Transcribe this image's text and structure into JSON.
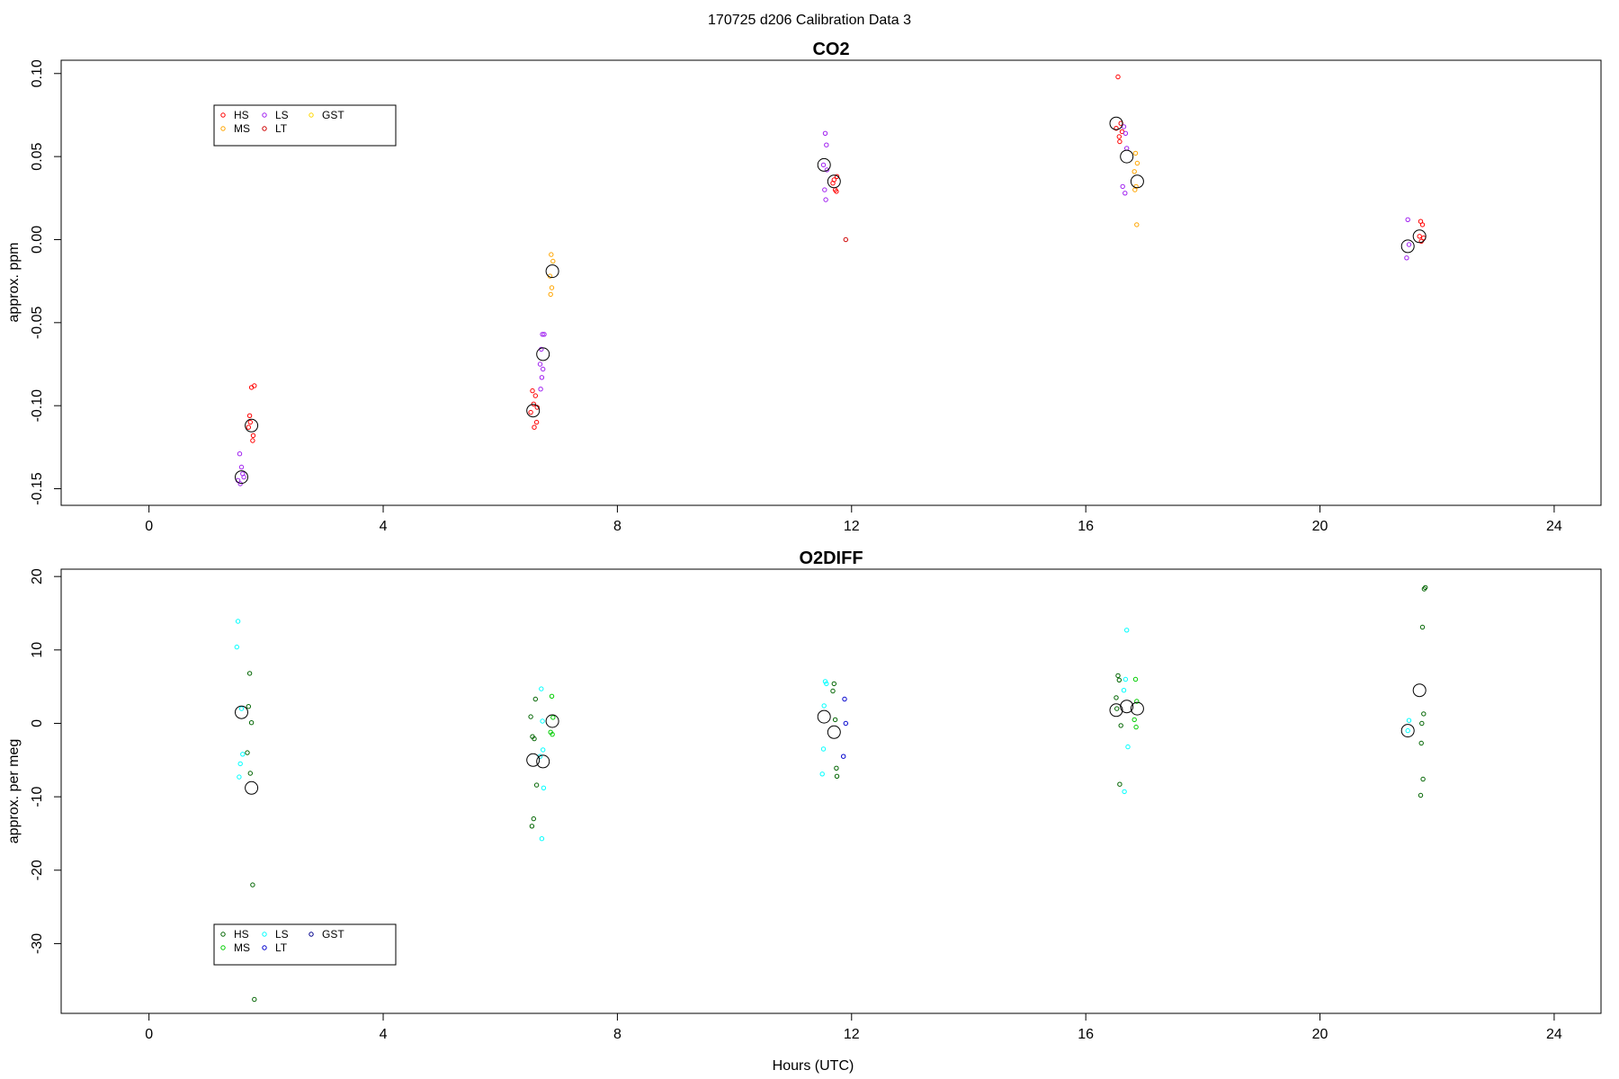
{
  "figure": {
    "title": "170725   d206   Calibration Data 3",
    "xlabel": "Hours (UTC)"
  },
  "chart_data": [
    {
      "type": "scatter",
      "title": "CO2",
      "xlabel": "",
      "ylabel": "approx. ppm",
      "xlim": [
        -1.5,
        24.8
      ],
      "ylim": [
        -0.16,
        0.108
      ],
      "xticks": [
        0,
        4,
        8,
        12,
        16,
        20,
        24
      ],
      "yticks": [
        -0.15,
        -0.1,
        -0.05,
        0.0,
        0.05,
        0.1
      ],
      "ytick_labels": [
        "-0.15",
        "-0.10",
        "-0.05",
        "0.00",
        "0.05",
        "0.10"
      ],
      "legend": {
        "position": "top-left",
        "entries": [
          {
            "name": "HS",
            "color": "#ff0000"
          },
          {
            "name": "MS",
            "color": "#ffa500"
          },
          {
            "name": "LS",
            "color": "#a020f0"
          },
          {
            "name": "LT",
            "color": "#cd0000"
          },
          {
            "name": "GST",
            "color": "#ffd700"
          }
        ]
      },
      "series": [
        {
          "name": "HS",
          "color": "#ff0000",
          "x": [
            1.75,
            1.8,
            1.72,
            1.78,
            1.7,
            1.77,
            1.73,
            6.55,
            6.6,
            6.52,
            6.62,
            6.58,
            6.63,
            6.57,
            11.7,
            11.72,
            11.68,
            11.75,
            11.74,
            16.55,
            16.52,
            16.6,
            16.57,
            16.62,
            16.58,
            21.72,
            21.75,
            21.7,
            21.73,
            21.77
          ],
          "y": [
            -0.089,
            -0.088,
            -0.106,
            -0.118,
            -0.113,
            -0.121,
            -0.11,
            -0.091,
            -0.094,
            -0.104,
            -0.11,
            -0.113,
            -0.101,
            -0.099,
            0.036,
            0.03,
            0.034,
            0.038,
            0.029,
            0.098,
            0.067,
            0.07,
            0.062,
            0.065,
            0.059,
            0.011,
            0.009,
            0.002,
            -0.001,
            0.001
          ]
        },
        {
          "name": "LS",
          "color": "#a020f0",
          "x": [
            1.55,
            1.58,
            1.52,
            1.6,
            1.56,
            1.62,
            6.72,
            6.75,
            6.7,
            6.68,
            6.73,
            6.71,
            6.69,
            11.55,
            11.57,
            11.52,
            11.58,
            11.56,
            11.54,
            16.65,
            16.68,
            16.7,
            16.63,
            16.67,
            21.5,
            21.48,
            21.52
          ],
          "y": [
            -0.129,
            -0.137,
            -0.145,
            -0.141,
            -0.147,
            -0.143,
            -0.057,
            -0.057,
            -0.066,
            -0.075,
            -0.078,
            -0.083,
            -0.09,
            0.064,
            0.057,
            0.045,
            0.042,
            0.024,
            0.03,
            0.068,
            0.064,
            0.055,
            0.032,
            0.028,
            0.012,
            -0.011,
            -0.003
          ]
        },
        {
          "name": "MS",
          "color": "#ffa500",
          "x": [
            6.87,
            6.9,
            6.85,
            6.88,
            6.86,
            16.85,
            16.88,
            16.83,
            16.86,
            16.84,
            16.87
          ],
          "y": [
            -0.009,
            -0.013,
            -0.022,
            -0.029,
            -0.033,
            0.052,
            0.046,
            0.041,
            0.032,
            0.03,
            0.009
          ]
        },
        {
          "name": "LT",
          "color": "#cd0000",
          "x": [
            11.9
          ],
          "y": [
            0.0
          ]
        },
        {
          "name": "mean",
          "color": "#000000",
          "marker": "large-circle",
          "x": [
            1.58,
            1.75,
            6.56,
            6.73,
            6.89,
            11.53,
            11.7,
            16.52,
            16.7,
            16.88,
            21.5,
            21.7
          ],
          "y": [
            -0.143,
            -0.112,
            -0.103,
            -0.069,
            -0.019,
            0.045,
            0.035,
            0.07,
            0.05,
            0.035,
            -0.004,
            0.002
          ]
        }
      ]
    },
    {
      "type": "scatter",
      "title": "O2DIFF",
      "xlabel": "Hours (UTC)",
      "ylabel": "approx. per meg",
      "xlim": [
        -1.5,
        24.8
      ],
      "ylim": [
        -39.5,
        21
      ],
      "xticks": [
        0,
        4,
        8,
        12,
        16,
        20,
        24
      ],
      "yticks": [
        -30,
        -20,
        -10,
        0,
        10,
        20
      ],
      "ytick_labels": [
        "-30",
        "-20",
        "-10",
        "0",
        "10",
        "20"
      ],
      "legend": {
        "position": "bottom-left",
        "entries": [
          {
            "name": "HS",
            "color": "#006400"
          },
          {
            "name": "MS",
            "color": "#00cd00"
          },
          {
            "name": "LS",
            "color": "#00ffff"
          },
          {
            "name": "LT",
            "color": "#0000cd"
          },
          {
            "name": "GST",
            "color": "#00008b"
          }
        ]
      },
      "series": [
        {
          "name": "HS",
          "color": "#006400",
          "x": [
            1.72,
            1.7,
            1.75,
            1.68,
            1.73,
            1.77,
            1.8,
            6.52,
            6.55,
            6.58,
            6.6,
            6.62,
            6.57,
            6.54,
            11.7,
            11.68,
            11.72,
            11.74,
            11.75,
            16.55,
            16.57,
            16.52,
            16.6,
            16.58,
            16.53,
            21.8,
            21.78,
            21.75,
            21.77,
            21.73,
            21.76,
            21.72,
            21.74
          ],
          "y": [
            6.8,
            2.3,
            0.1,
            -4.0,
            -6.8,
            -22.0,
            -37.6,
            0.9,
            -1.8,
            -2.1,
            3.3,
            -8.4,
            -13.0,
            -14.0,
            5.4,
            4.4,
            0.5,
            -6.1,
            -7.2,
            6.5,
            5.9,
            3.5,
            -0.3,
            -8.3,
            2.0,
            18.5,
            18.3,
            13.1,
            1.3,
            -2.7,
            -7.6,
            -9.8,
            0.0
          ]
        },
        {
          "name": "LS",
          "color": "#00ffff",
          "x": [
            1.52,
            1.5,
            1.58,
            1.56,
            1.54,
            1.6,
            6.7,
            6.72,
            6.68,
            6.74,
            6.71,
            6.73,
            11.55,
            11.57,
            11.52,
            11.5,
            11.53,
            16.7,
            16.68,
            16.65,
            16.72,
            16.66,
            21.5,
            21.52
          ],
          "y": [
            13.9,
            10.4,
            2.0,
            -5.5,
            -7.3,
            -4.2,
            4.7,
            0.3,
            -4.5,
            -8.8,
            -15.7,
            -3.6,
            5.7,
            5.4,
            -3.5,
            -6.9,
            2.4,
            12.7,
            6.0,
            4.5,
            -3.2,
            -9.3,
            -1.0,
            0.4
          ]
        },
        {
          "name": "MS",
          "color": "#00cd00",
          "x": [
            6.88,
            6.9,
            6.86,
            6.89,
            16.85,
            16.87,
            16.83,
            16.86
          ],
          "y": [
            3.7,
            0.8,
            -1.2,
            -1.5,
            6.0,
            3.0,
            0.5,
            -0.5
          ]
        },
        {
          "name": "LT",
          "color": "#0000cd",
          "x": [
            11.88,
            11.9,
            11.86
          ],
          "y": [
            3.3,
            0.0,
            -4.5
          ]
        },
        {
          "name": "mean",
          "color": "#000000",
          "marker": "large-circle",
          "x": [
            1.58,
            1.75,
            6.56,
            6.73,
            6.89,
            11.53,
            11.7,
            16.52,
            16.7,
            16.88,
            21.5,
            21.7
          ],
          "y": [
            1.5,
            -8.8,
            -5.0,
            -5.2,
            0.3,
            0.9,
            -1.2,
            1.8,
            2.3,
            2.0,
            -1.0,
            4.5
          ]
        }
      ]
    }
  ]
}
